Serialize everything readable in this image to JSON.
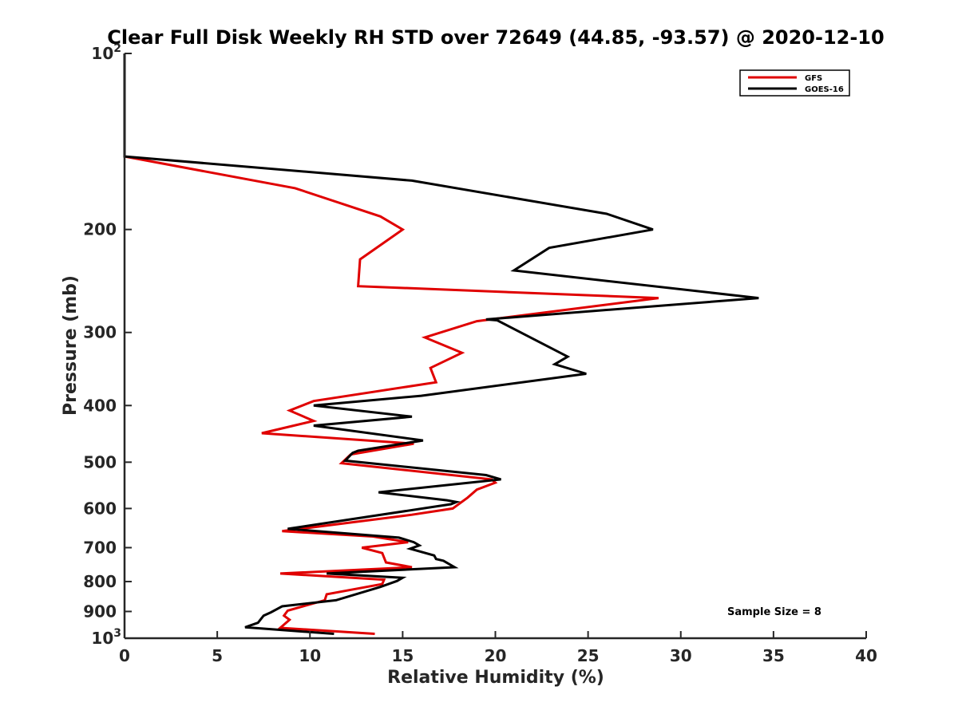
{
  "chart_data": {
    "type": "line",
    "title": "Clear Full Disk Weekly RH STD over 72649 (44.85, -93.57) @ 2020-12-10",
    "xlabel": "Relative Humidity (%)",
    "ylabel": "Pressure (mb)",
    "xlim": [
      0,
      40
    ],
    "ylim": [
      100,
      1000
    ],
    "y_scale": "log",
    "y_reversed": true,
    "x_ticks": [
      "0",
      "5",
      "10",
      "15",
      "20",
      "25",
      "30",
      "35",
      "40"
    ],
    "y_ticks": [
      {
        "value": 100,
        "base": "10",
        "exp": "2"
      },
      {
        "value": 200,
        "label": "200"
      },
      {
        "value": 300,
        "label": "300"
      },
      {
        "value": 400,
        "label": "400"
      },
      {
        "value": 500,
        "label": "500"
      },
      {
        "value": 600,
        "label": "600"
      },
      {
        "value": 700,
        "label": "700"
      },
      {
        "value": 800,
        "label": "800"
      },
      {
        "value": 900,
        "label": "900"
      },
      {
        "value": 1000,
        "base": "10",
        "exp": "3"
      }
    ],
    "legend_position": "top-right",
    "annotation": "Sample Size = 8",
    "series": [
      {
        "name": "GFS",
        "color": "#e00000",
        "points": [
          [
            0,
            100
          ],
          [
            0,
            150
          ],
          [
            9.2,
            170
          ],
          [
            13.8,
            190
          ],
          [
            15.0,
            200
          ],
          [
            12.7,
            225
          ],
          [
            12.6,
            250
          ],
          [
            28.8,
            262
          ],
          [
            19.0,
            287
          ],
          [
            16.2,
            306
          ],
          [
            18.2,
            325
          ],
          [
            16.5,
            345
          ],
          [
            16.8,
            365
          ],
          [
            10.2,
            393
          ],
          [
            8.9,
            408
          ],
          [
            10.2,
            425
          ],
          [
            7.4,
            446
          ],
          [
            15.6,
            465
          ],
          [
            12.2,
            485
          ],
          [
            11.7,
            502
          ],
          [
            19.8,
            535
          ],
          [
            20.0,
            542
          ],
          [
            19.0,
            557
          ],
          [
            18.5,
            575
          ],
          [
            17.7,
            600
          ],
          [
            15.5,
            615
          ],
          [
            8.5,
            656
          ],
          [
            13.4,
            670
          ],
          [
            15.3,
            685
          ],
          [
            12.8,
            700
          ],
          [
            13.9,
            715
          ],
          [
            14.1,
            742
          ],
          [
            15.5,
            756
          ],
          [
            8.4,
            775
          ],
          [
            14.0,
            794
          ],
          [
            13.9,
            808
          ],
          [
            10.9,
            841
          ],
          [
            10.8,
            861
          ],
          [
            8.8,
            897
          ],
          [
            8.6,
            915
          ],
          [
            8.9,
            930
          ],
          [
            8.4,
            960
          ],
          [
            13.5,
            983
          ]
        ]
      },
      {
        "name": "GOES-16",
        "color": "#000000",
        "points": [
          [
            0,
            100
          ],
          [
            0,
            150
          ],
          [
            15.5,
            165
          ],
          [
            26.0,
            188
          ],
          [
            28.5,
            200
          ],
          [
            22.9,
            215
          ],
          [
            21.0,
            235
          ],
          [
            34.2,
            262
          ],
          [
            19.5,
            285
          ],
          [
            20.1,
            286
          ],
          [
            23.9,
            330
          ],
          [
            23.2,
            340
          ],
          [
            24.9,
            353
          ],
          [
            16.0,
            385
          ],
          [
            10.2,
            400
          ],
          [
            15.5,
            418
          ],
          [
            10.2,
            433
          ],
          [
            16.1,
            459
          ],
          [
            12.6,
            478
          ],
          [
            12.3,
            482
          ],
          [
            11.9,
            497
          ],
          [
            19.5,
            526
          ],
          [
            20.3,
            535
          ],
          [
            13.7,
            563
          ],
          [
            17.4,
            581
          ],
          [
            17.9,
            585
          ],
          [
            17.6,
            590
          ],
          [
            8.8,
            650
          ],
          [
            14.8,
            673
          ],
          [
            15.6,
            685
          ],
          [
            15.9,
            694
          ],
          [
            15.4,
            703
          ],
          [
            16.7,
            722
          ],
          [
            16.8,
            732
          ],
          [
            17.2,
            737
          ],
          [
            17.8,
            756
          ],
          [
            10.9,
            775
          ],
          [
            15.0,
            788
          ],
          [
            14.7,
            798
          ],
          [
            13.8,
            817
          ],
          [
            11.4,
            861
          ],
          [
            8.5,
            882
          ],
          [
            7.9,
            903
          ],
          [
            7.5,
            915
          ],
          [
            7.2,
            941
          ],
          [
            6.5,
            958
          ],
          [
            11.3,
            983
          ]
        ]
      }
    ]
  }
}
